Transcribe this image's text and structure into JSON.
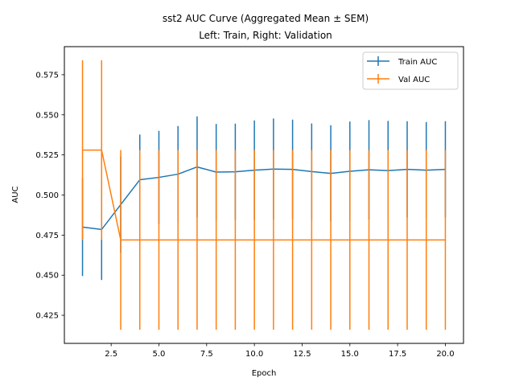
{
  "chart_data": {
    "type": "line",
    "title_line1": "sst2 AUC Curve (Aggregated Mean ± SEM)",
    "title_line2": "Left: Train, Right: Validation",
    "xlabel": "Epoch",
    "ylabel": "AUC",
    "xlim": [
      0.05,
      20.95
    ],
    "ylim": [
      0.4075,
      0.5925
    ],
    "xticks": [
      2.5,
      5.0,
      7.5,
      10.0,
      12.5,
      15.0,
      17.5,
      20.0
    ],
    "xtick_labels": [
      "2.5",
      "5.0",
      "7.5",
      "10.0",
      "12.5",
      "15.0",
      "17.5",
      "20.0"
    ],
    "yticks": [
      0.425,
      0.45,
      0.475,
      0.5,
      0.525,
      0.55,
      0.575
    ],
    "ytick_labels": [
      "0.425",
      "0.450",
      "0.475",
      "0.500",
      "0.525",
      "0.550",
      "0.575"
    ],
    "grid": false,
    "legend_position": "top-right",
    "x": [
      1,
      2,
      3,
      4,
      5,
      6,
      7,
      8,
      9,
      10,
      11,
      12,
      13,
      14,
      15,
      16,
      17,
      18,
      19,
      20
    ],
    "series": [
      {
        "name": "Train AUC",
        "color": "#1f77b4",
        "values": [
          0.48,
          0.4785,
          0.494,
          0.5095,
          0.511,
          0.513,
          0.5175,
          0.5143,
          0.5145,
          0.5155,
          0.5162,
          0.516,
          0.5146,
          0.5135,
          0.5148,
          0.5157,
          0.5152,
          0.516,
          0.5155,
          0.516
        ],
        "errors": [
          0.0305,
          0.0315,
          0.03,
          0.0282,
          0.029,
          0.03,
          0.0315,
          0.03,
          0.03,
          0.031,
          0.0315,
          0.031,
          0.03,
          0.03,
          0.031,
          0.031,
          0.031,
          0.03,
          0.03,
          0.03
        ]
      },
      {
        "name": "Val AUC",
        "color": "#ff7f0e",
        "values": [
          0.528,
          0.528,
          0.472,
          0.472,
          0.472,
          0.472,
          0.472,
          0.472,
          0.472,
          0.472,
          0.472,
          0.472,
          0.472,
          0.472,
          0.472,
          0.472,
          0.472,
          0.472,
          0.472,
          0.472
        ],
        "errors": [
          0.056,
          0.056,
          0.056,
          0.056,
          0.056,
          0.056,
          0.056,
          0.056,
          0.056,
          0.056,
          0.056,
          0.056,
          0.056,
          0.056,
          0.056,
          0.056,
          0.056,
          0.056,
          0.056,
          0.056
        ]
      }
    ]
  }
}
